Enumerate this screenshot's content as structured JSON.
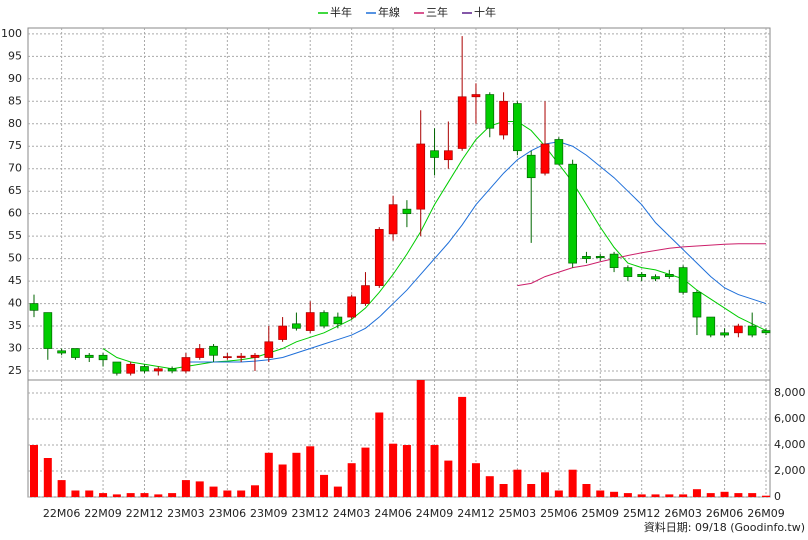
{
  "chart_data": {
    "type": "candlestick",
    "categories": [
      null,
      null,
      "22M06",
      null,
      null,
      "22M09",
      null,
      null,
      "22M12",
      null,
      null,
      "23M03",
      null,
      null,
      "23M06",
      null,
      null,
      "23M09",
      null,
      null,
      "23M12",
      null,
      null,
      "24M03",
      null,
      null,
      "24M06",
      null,
      null,
      "24M09",
      null,
      null,
      "24M12",
      null,
      null,
      "25M03",
      null,
      null,
      "25M06",
      null,
      null,
      "25M09",
      null,
      null,
      "25M12",
      null,
      null,
      "26M03",
      null,
      null,
      "26M06",
      null,
      null,
      "26M09"
    ],
    "open": [
      40,
      38,
      29.5,
      30,
      28.5,
      28.5,
      27,
      24.5,
      26,
      25,
      25.5,
      25,
      28,
      30.5,
      28,
      28,
      28,
      28,
      32,
      35.5,
      34,
      38,
      37,
      37,
      40,
      44,
      55.5,
      61,
      61,
      74,
      72,
      74.5,
      86,
      86.5,
      77.5,
      84.5,
      73,
      69,
      76.5,
      71,
      50.5,
      50.5,
      51,
      48,
      46.5,
      46,
      46.5,
      48,
      42.5,
      37,
      33.5,
      33.5,
      35,
      34
    ],
    "high": [
      42,
      38,
      30,
      30,
      29,
      29,
      27,
      27,
      26.5,
      26,
      26,
      29,
      31,
      31,
      29,
      29,
      29,
      35,
      37,
      38,
      40.5,
      38.5,
      38,
      42,
      47,
      57,
      64,
      63,
      83,
      79,
      80.5,
      99.5,
      89,
      87,
      87,
      85,
      74,
      85,
      77,
      72,
      51.5,
      51,
      51.5,
      48.5,
      47,
      46.5,
      47.5,
      48.5,
      43,
      37,
      34.5,
      35.5,
      38,
      34.5
    ],
    "low": [
      37,
      27.5,
      28.5,
      27.5,
      27,
      26,
      24,
      24,
      24.5,
      24,
      24.5,
      24.5,
      27.5,
      27,
      27.5,
      27,
      25,
      27,
      31.5,
      34,
      33.5,
      34.5,
      34.5,
      36.5,
      39.5,
      43.5,
      54,
      57,
      55,
      68.5,
      70,
      74,
      80,
      77,
      76.5,
      73,
      53.5,
      68.5,
      71,
      48,
      49,
      49.5,
      47,
      45,
      45,
      45,
      45.5,
      42,
      33,
      32.5,
      32.5,
      32.5,
      32.5,
      33
    ],
    "close": [
      38.5,
      30,
      29,
      28,
      28,
      27.5,
      24.5,
      26.5,
      25,
      25.5,
      25,
      28,
      30,
      28.5,
      28.2,
      28.3,
      28.5,
      31.5,
      35,
      34.5,
      38,
      35,
      35.5,
      41.5,
      44,
      56.5,
      62,
      60,
      75.5,
      72.5,
      74,
      86,
      86.5,
      79,
      85,
      74,
      68,
      75.5,
      71,
      49,
      50,
      50.2,
      48,
      46,
      46,
      45.5,
      46,
      42.5,
      37,
      33,
      33,
      35,
      33,
      33.5
    ],
    "up_color": "#ff0000",
    "down_color": "#00cc00",
    "ylim": [
      23,
      101.3
    ],
    "yticks": [
      25,
      30,
      35,
      40,
      45,
      50,
      55,
      60,
      65,
      70,
      75,
      80,
      85,
      90,
      95,
      100
    ],
    "grid": true,
    "series": [
      {
        "name": "半年",
        "color": "#00cc00",
        "values": [
          null,
          null,
          null,
          null,
          null,
          30,
          28,
          27,
          26.5,
          26,
          25.5,
          26,
          26.5,
          27,
          27.2,
          27.5,
          28,
          29,
          30,
          31.5,
          32.5,
          33.5,
          35,
          36.5,
          39,
          42.5,
          46.5,
          51,
          56,
          62,
          67,
          72,
          76.5,
          79.5,
          80.5,
          80.5,
          78.5,
          75,
          71,
          67,
          62,
          57,
          52.5,
          49,
          48,
          47.5,
          46.5,
          45.5,
          43,
          41,
          39,
          37,
          35.5,
          34
        ]
      },
      {
        "name": "年線",
        "color": "#1e6fd9",
        "values": [
          null,
          null,
          null,
          null,
          null,
          null,
          null,
          null,
          null,
          null,
          null,
          27,
          27,
          27,
          27,
          27,
          27.2,
          27.5,
          28,
          29,
          30,
          31,
          32,
          33,
          34.5,
          37,
          40,
          43,
          46.5,
          50,
          53.5,
          57.5,
          62,
          65.5,
          69,
          72,
          74,
          75.5,
          76,
          75,
          73,
          70.5,
          68,
          65,
          62,
          58,
          55,
          52,
          49,
          46,
          43.5,
          42,
          41,
          40
        ]
      },
      {
        "name": "三年",
        "color": "#cc1f6a",
        "values": [
          null,
          null,
          null,
          null,
          null,
          null,
          null,
          null,
          null,
          null,
          null,
          null,
          null,
          null,
          null,
          null,
          null,
          null,
          null,
          null,
          null,
          null,
          null,
          null,
          null,
          null,
          null,
          null,
          null,
          null,
          null,
          null,
          null,
          null,
          null,
          44,
          44.5,
          46,
          47,
          48,
          48.5,
          49.3,
          50,
          50.7,
          51.3,
          51.8,
          52.3,
          52.6,
          52.8,
          53,
          53.2,
          53.3,
          53.3,
          53.3
        ]
      },
      {
        "name": "十年",
        "color": "#5b1f8a",
        "values": [
          null,
          null,
          null,
          null,
          null,
          null,
          null,
          null,
          null,
          null,
          null,
          null,
          null,
          null,
          null,
          null,
          null,
          null,
          null,
          null,
          null,
          null,
          null,
          null,
          null,
          null,
          null,
          null,
          null,
          null,
          null,
          null,
          null,
          null,
          null,
          null,
          null,
          null,
          null,
          null,
          null,
          null,
          null,
          null,
          null,
          null,
          null,
          null,
          null,
          null,
          null,
          null,
          null,
          null
        ]
      }
    ],
    "volume": {
      "color": "#ff0000",
      "values": [
        4000,
        3000,
        1300,
        500,
        500,
        300,
        200,
        300,
        300,
        200,
        300,
        1300,
        1200,
        800,
        500,
        500,
        900,
        3400,
        2500,
        3400,
        3900,
        1700,
        800,
        2600,
        3800,
        6500,
        4100,
        4000,
        9000,
        4000,
        2800,
        7700,
        2600,
        1600,
        1000,
        2100,
        1000,
        1900,
        500,
        2100,
        1000,
        500,
        400,
        300,
        200,
        200,
        200,
        200,
        600,
        300,
        400,
        300,
        300,
        100
      ],
      "ylim": [
        0,
        9000
      ],
      "yticks": [
        0,
        {
          "value": 2000,
          "label": "2,000"
        },
        {
          "value": 4000,
          "label": "4,000"
        },
        {
          "value": 6000,
          "label": "6,000"
        },
        {
          "value": 8000,
          "label": "8,000"
        }
      ]
    }
  },
  "footer": "資料日期: 09/18 (Goodinfo.tw)"
}
